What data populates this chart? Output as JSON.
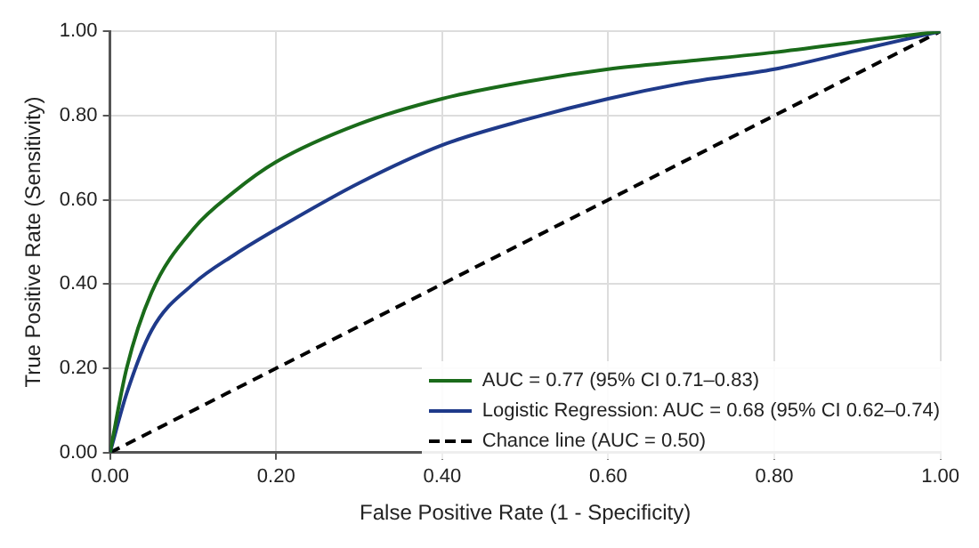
{
  "chart_data": {
    "type": "line",
    "xlabel": "False Positive Rate (1 - Specificity)",
    "ylabel": "True Positive Rate (Sensitivity)",
    "xlim": [
      0,
      1
    ],
    "ylim": [
      0,
      1
    ],
    "xticks": [
      {
        "value": 0,
        "label": "0.00"
      },
      {
        "value": 0.2,
        "label": "0.20"
      },
      {
        "value": 0.4,
        "label": "0.40"
      },
      {
        "value": 0.6,
        "label": "0.60"
      },
      {
        "value": 0.8,
        "label": "0.80"
      },
      {
        "value": 1,
        "label": "1.00"
      }
    ],
    "yticks": [
      {
        "value": 0,
        "label": "0.00"
      },
      {
        "value": 0.2,
        "label": "0.20"
      },
      {
        "value": 0.4,
        "label": "0.40"
      },
      {
        "value": 0.6,
        "label": "0.60"
      },
      {
        "value": 0.8,
        "label": "0.80"
      },
      {
        "value": 1,
        "label": "1.00"
      }
    ],
    "grid": true,
    "legend": "bottom right",
    "marker": "none",
    "series": [
      {
        "name": "AUC = 0.77 (95% CI 0.71–0.83)",
        "color": "#1a6b1a",
        "x": [
          0,
          0.02,
          0.05,
          0.1,
          0.15,
          0.2,
          0.3,
          0.4,
          0.5,
          0.6,
          0.7,
          0.8,
          0.9,
          1
        ],
        "values": [
          0,
          0.2,
          0.38,
          0.53,
          0.62,
          0.69,
          0.78,
          0.84,
          0.88,
          0.91,
          0.93,
          0.95,
          0.975,
          1
        ]
      },
      {
        "name": "Logistic Regression: AUC = 0.68 (95% CI 0.62–0.74)",
        "color": "#1f3a8a",
        "x": [
          0,
          0.02,
          0.05,
          0.1,
          0.15,
          0.2,
          0.3,
          0.4,
          0.5,
          0.6,
          0.7,
          0.8,
          0.9,
          1
        ],
        "values": [
          0,
          0.14,
          0.29,
          0.4,
          0.47,
          0.53,
          0.64,
          0.73,
          0.79,
          0.84,
          0.88,
          0.91,
          0.955,
          1
        ]
      },
      {
        "name": "Chance line (AUC = 0.50)",
        "color": "#000000",
        "line_style": "dashed",
        "x": [
          0,
          1
        ],
        "values": [
          0,
          1
        ]
      }
    ]
  }
}
